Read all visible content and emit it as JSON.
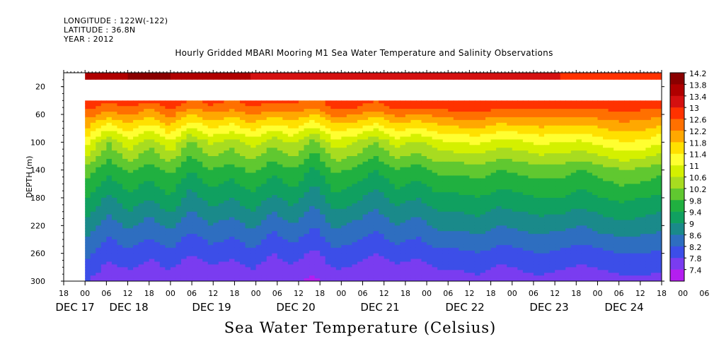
{
  "meta": {
    "longitude": "LONGITUDE : 122W(-122)",
    "latitude": "LATITUDE : 36.8N",
    "year": "YEAR : 2012"
  },
  "chart_data": {
    "type": "heatmap",
    "title": "Hourly Gridded MBARI Mooring M1 Sea Water Temperature and Salinity Observations",
    "xlabel": "",
    "ylabel": "DEPTH (m)",
    "variable_label": "Sea Water Temperature (Celsius)",
    "ylim": [
      300,
      0
    ],
    "y_ticks": [
      20,
      60,
      100,
      140,
      180,
      220,
      260,
      300
    ],
    "x_hour_ticks": [
      "18",
      "00",
      "06",
      "12",
      "18",
      "00",
      "06",
      "12",
      "18",
      "00",
      "06",
      "12",
      "18",
      "00",
      "06",
      "12",
      "18",
      "00",
      "06",
      "12",
      "18",
      "00",
      "06",
      "12",
      "18",
      "00",
      "06",
      "12",
      "18",
      "00",
      "06",
      "12",
      "18"
    ],
    "x_day_labels": [
      "DEC 17",
      "DEC 18",
      "DEC 19",
      "DEC 20",
      "DEC 21",
      "DEC 22",
      "DEC 23",
      "DEC 24"
    ],
    "x_start": "2012-12-17 18:00",
    "x_end": "2012-12-24 18:00",
    "data_start": "2012-12-18 00:00",
    "colorbar_levels": [
      14.2,
      13.8,
      13.4,
      13,
      12.6,
      12.2,
      11.8,
      11.4,
      11,
      10.6,
      10.2,
      9.8,
      9.4,
      9,
      8.6,
      8.2,
      7.8,
      7.4
    ],
    "colors": {
      "14.2": "#8a0000",
      "13.8": "#b00000",
      "13.4": "#d41010",
      "13": "#ff3200",
      "12.6": "#ff7000",
      "12.2": "#ffa800",
      "11.8": "#ffe000",
      "11.4": "#ffff30",
      "11": "#d4f000",
      "10.6": "#a8dc20",
      "10.2": "#60c830",
      "9.8": "#20b040",
      "9.4": "#10a060",
      "9": "#1a8a8a",
      "8.6": "#2e6ec0",
      "8.2": "#3c4ee8",
      "7.8": "#7a3cf0",
      "7.4": "#b41ef0"
    },
    "series": [
      {
        "depth_m": 10,
        "values": [
          13.8,
          13.9,
          14,
          14.1,
          14,
          13.9,
          13.8,
          13.7,
          13.6,
          13.6,
          13.6,
          13.5,
          13.5,
          13.5,
          13.5,
          13.4,
          13.4,
          13.4,
          13.4,
          13.3,
          13.3,
          13.3,
          13.3,
          13.2,
          13.2,
          13.2,
          13.2,
          13.2,
          13.2
        ]
      },
      {
        "depth_m": 50,
        "values": [
          12.9,
          12.6,
          12.8,
          12.5,
          12.9,
          12.4,
          12.7,
          12.5,
          12.8,
          12.6,
          12.7,
          12.4,
          12.9,
          12.8,
          12.6,
          12.9,
          12.8,
          12.9,
          13,
          13,
          12.9,
          12.9,
          12.9,
          12.8,
          12.9,
          12.9,
          13,
          12.9,
          12.8
        ]
      },
      {
        "depth_m": 100,
        "values": [
          11.3,
          10.4,
          11.1,
          10.5,
          11.2,
          10.3,
          10.9,
          10.6,
          11,
          10.5,
          10.9,
          10.2,
          11.1,
          10.8,
          10.4,
          11,
          10.7,
          11.1,
          11.2,
          11.3,
          11,
          11.1,
          11.3,
          11.2,
          11.1,
          11.4,
          11.6,
          11.5,
          11.2
        ]
      },
      {
        "depth_m": 140,
        "values": [
          10.2,
          9.7,
          10.1,
          9.8,
          10.1,
          9.6,
          10,
          9.8,
          10.1,
          9.7,
          10,
          9.5,
          10.1,
          9.9,
          9.6,
          10,
          9.8,
          10.1,
          10.1,
          10.2,
          10,
          10.1,
          10.2,
          10.2,
          10,
          10.2,
          10.4,
          10.3,
          10.1
        ]
      },
      {
        "depth_m": 180,
        "values": [
          9.6,
          9.1,
          9.5,
          9.2,
          9.6,
          9,
          9.4,
          9.2,
          9.5,
          9.1,
          9.4,
          8.9,
          9.5,
          9.3,
          9,
          9.4,
          9.2,
          9.5,
          9.5,
          9.6,
          9.4,
          9.5,
          9.6,
          9.6,
          9.4,
          9.6,
          9.7,
          9.6,
          9.5
        ]
      },
      {
        "depth_m": 220,
        "values": [
          9,
          8.6,
          8.9,
          8.6,
          8.9,
          8.5,
          8.8,
          8.6,
          8.9,
          8.5,
          8.8,
          8.4,
          8.9,
          8.7,
          8.5,
          8.8,
          8.6,
          8.9,
          8.9,
          9,
          8.8,
          8.9,
          9,
          8.9,
          8.8,
          9,
          9.1,
          9,
          8.9
        ]
      },
      {
        "depth_m": 260,
        "values": [
          8.5,
          8.1,
          8.3,
          8.1,
          8.3,
          8,
          8.2,
          8.1,
          8.3,
          8,
          8.2,
          7.9,
          8.3,
          8.2,
          8,
          8.2,
          8.1,
          8.3,
          8.3,
          8.4,
          8.2,
          8.3,
          8.4,
          8.3,
          8.2,
          8.3,
          8.4,
          8.4,
          8.3
        ]
      },
      {
        "depth_m": 300,
        "values": [
          8,
          7.7,
          7.8,
          7.6,
          7.8,
          7.6,
          7.7,
          7.6,
          7.8,
          7.6,
          7.7,
          7.5,
          7.8,
          7.7,
          7.6,
          7.7,
          7.6,
          7.8,
          7.8,
          7.9,
          7.7,
          7.8,
          7.9,
          7.8,
          7.7,
          7.8,
          7.9,
          7.9,
          7.8
        ]
      }
    ]
  }
}
